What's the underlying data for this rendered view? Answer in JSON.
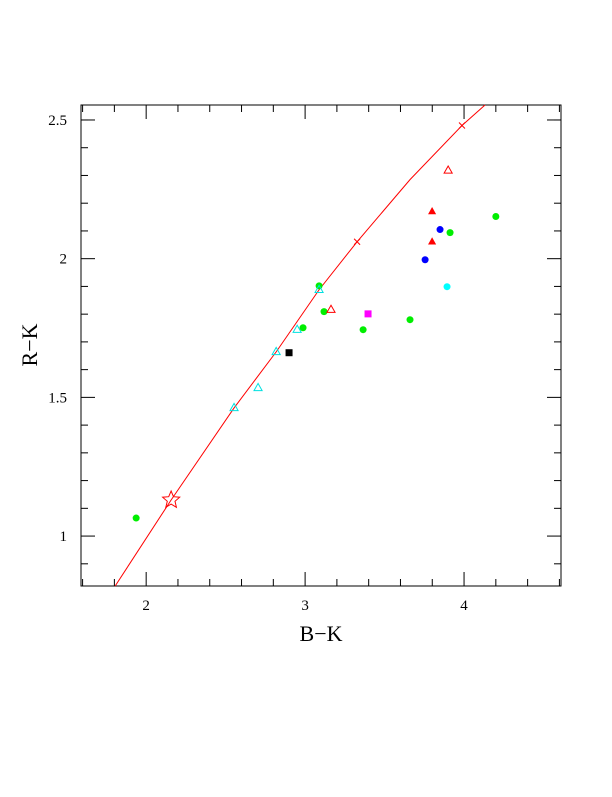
{
  "chart_data": {
    "type": "scatter",
    "x_label": "B−K",
    "y_label": "R−K",
    "xlim": [
      1.59,
      4.61
    ],
    "ylim": [
      0.82,
      2.554
    ],
    "xticks": [
      2,
      3,
      4
    ],
    "yticks": [
      1,
      1.5,
      2,
      2.5
    ],
    "xminorticks": [
      1.6,
      1.8,
      2.2,
      2.4,
      2.6,
      2.8,
      3.2,
      3.4,
      3.6,
      3.8,
      4.2,
      4.4,
      4.6
    ],
    "yminorticks": [
      0.9,
      1.1,
      1.2,
      1.3,
      1.4,
      1.6,
      1.7,
      1.8,
      1.9,
      2.1,
      2.2,
      2.3,
      2.4,
      2.5
    ],
    "series": [
      {
        "marker": "line",
        "color": "#ff0000",
        "x": [
          1.805,
          2.157,
          2.553,
          2.818,
          3.088,
          3.327,
          3.66,
          3.987,
          4.132
        ],
        "y": [
          0.82,
          1.13,
          1.462,
          1.664,
          1.888,
          2.061,
          2.285,
          2.48,
          2.554
        ]
      },
      {
        "marker": "circle",
        "color": "#00ee00",
        "x": [
          1.937,
          2.987,
          3.088,
          3.119,
          3.365,
          3.66,
          3.912,
          4.2
        ],
        "y": [
          1.065,
          1.751,
          1.902,
          1.809,
          1.744,
          1.78,
          2.094,
          2.152
        ]
      },
      {
        "marker": "circle",
        "color": "#0000ff",
        "x": [
          3.755,
          3.849
        ],
        "y": [
          1.996,
          2.105
        ]
      },
      {
        "marker": "circle",
        "color": "#00ffff",
        "x": [
          3.893
        ],
        "y": [
          1.899
        ]
      },
      {
        "marker": "square",
        "color": "#ff00ff",
        "x": [
          3.396
        ],
        "y": [
          1.801
        ]
      },
      {
        "marker": "square",
        "color": "#000000",
        "x": [
          2.899
        ],
        "y": [
          1.661
        ]
      },
      {
        "marker": "triangle",
        "color": "#ff0000",
        "x": [
          3.799,
          3.799
        ],
        "y": [
          2.17,
          2.061
        ]
      },
      {
        "marker": "triangle-open",
        "color": "#ff0000",
        "x": [
          3.9,
          3.163
        ],
        "y": [
          2.318,
          1.816
        ]
      },
      {
        "marker": "triangle-open",
        "color": "#00e0e0",
        "x": [
          2.553,
          2.704,
          2.818,
          2.95,
          3.088
        ],
        "y": [
          1.462,
          1.534,
          1.664,
          1.744,
          1.888
        ]
      },
      {
        "marker": "x",
        "color": "#ff0000",
        "x": [
          3.327,
          3.987
        ],
        "y": [
          2.061,
          2.48
        ]
      },
      {
        "marker": "star",
        "color": "#ff0000",
        "x": [
          2.157
        ],
        "y": [
          1.13
        ]
      }
    ]
  }
}
